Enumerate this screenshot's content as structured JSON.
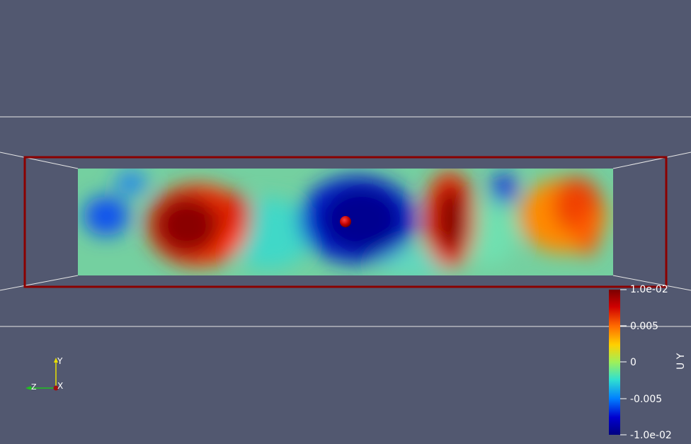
{
  "view": {
    "background": "#525870",
    "field_name": "U Y",
    "outline_color": "#8b0000"
  },
  "colorbar": {
    "title": "U Y",
    "max_label": "1.0e-02",
    "mid_high_label": "0.005",
    "zero_label": "0",
    "mid_low_label": "-0.005",
    "min_label": "-1.0e-02",
    "range": [
      -0.01,
      0.01
    ],
    "colors": [
      "#7a0000",
      "#d00000",
      "#ff6a00",
      "#ffd000",
      "#9ef05a",
      "#30e0d0",
      "#0080ff",
      "#0000d0",
      "#000080"
    ]
  },
  "axes": {
    "x_label": "X",
    "y_label": "Y",
    "z_label": "Z",
    "x_color": "#a01010",
    "y_color": "#e8e000",
    "z_color": "#20c020"
  }
}
